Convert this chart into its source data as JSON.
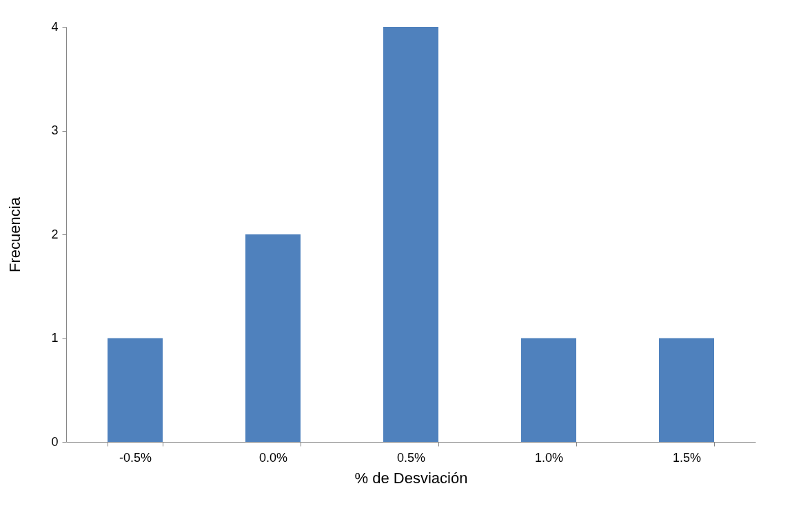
{
  "chart_data": {
    "type": "bar",
    "xlabel": "% de Desviación",
    "ylabel": "Frecuencia",
    "categories": [
      "-0.5%",
      "0.0%",
      "0.5%",
      "1.0%",
      "1.5%"
    ],
    "values": [
      1,
      2,
      4,
      1,
      1
    ],
    "color": "#4f81bd",
    "ylim": [
      0,
      4
    ],
    "yticks": [
      0,
      1,
      2,
      3,
      4
    ],
    "grid": false
  }
}
